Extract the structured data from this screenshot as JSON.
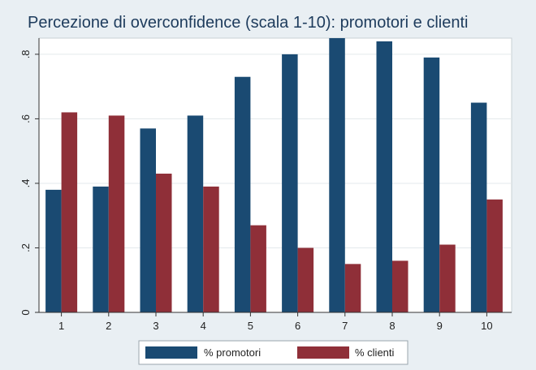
{
  "chart_data": {
    "type": "bar",
    "title": "Percezione di overconfidence (scala 1-10): promotori e clienti",
    "categories": [
      "1",
      "2",
      "3",
      "4",
      "5",
      "6",
      "7",
      "8",
      "9",
      "10"
    ],
    "series": [
      {
        "name": "% promotori",
        "color": "#1a4a72",
        "values": [
          0.38,
          0.39,
          0.57,
          0.61,
          0.73,
          0.8,
          0.85,
          0.84,
          0.79,
          0.65
        ]
      },
      {
        "name": "% clienti",
        "color": "#8f2f38",
        "values": [
          0.62,
          0.61,
          0.43,
          0.39,
          0.27,
          0.2,
          0.15,
          0.16,
          0.21,
          0.35
        ]
      }
    ],
    "y_ticks": [
      0,
      0.2,
      0.4,
      0.6,
      0.8
    ],
    "y_tick_labels": [
      "0",
      ".2",
      ".4",
      ".6",
      ".8"
    ],
    "ylim": [
      0,
      0.85
    ],
    "grid": true,
    "legend_position": "bottom"
  }
}
